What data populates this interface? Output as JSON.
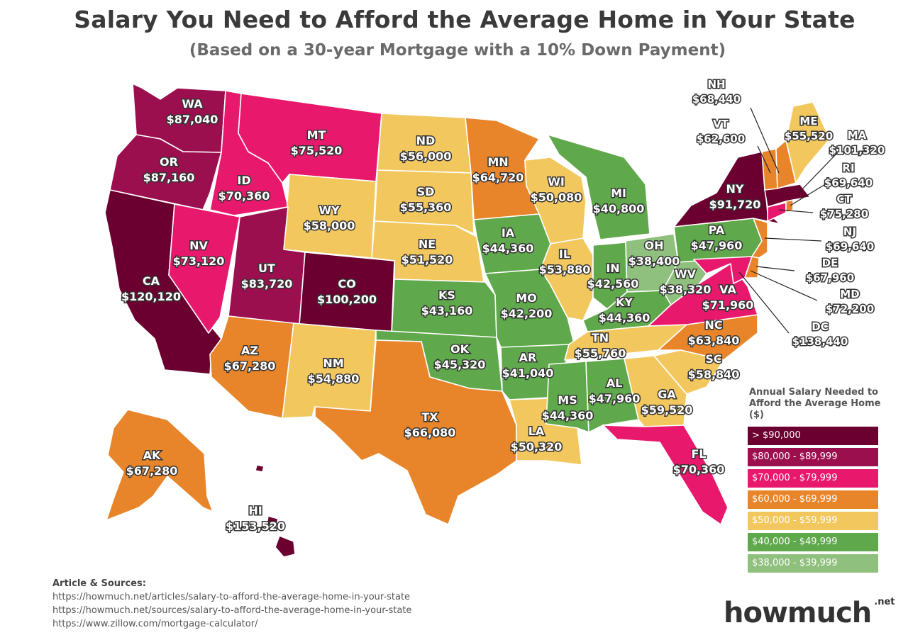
{
  "title": "Salary You Need to Afford the Average Home in Your State",
  "subtitle": "(Based on a 30-year Mortgage with a 10% Down Payment)",
  "colors": {
    "c90": "#6b0030",
    "c80": "#9b0f4f",
    "c70": "#e8186d",
    "c60": "#e8852a",
    "c50": "#f2c85e",
    "c40": "#5fa84b",
    "c38": "#8fc07e"
  },
  "legend": {
    "title": "Annual Salary Needed to Afford the Average Home ($)",
    "items": [
      {
        "label": "> $90,000",
        "color": "#6b0030"
      },
      {
        "label": "$80,000 - $89,999",
        "color": "#9b0f4f"
      },
      {
        "label": "$70,000 - $79,999",
        "color": "#e8186d"
      },
      {
        "label": "$60,000 - $69,999",
        "color": "#e8852a"
      },
      {
        "label": "$50,000 - $59,999",
        "color": "#f2c85e"
      },
      {
        "label": "$40,000 - $49,999",
        "color": "#5fa84b"
      },
      {
        "label": "$38,000 - $39,999",
        "color": "#8fc07e"
      }
    ]
  },
  "states": [
    {
      "abbr": "WA",
      "value": "$87,040"
    },
    {
      "abbr": "OR",
      "value": "$87,160"
    },
    {
      "abbr": "CA",
      "value": "$120,120"
    },
    {
      "abbr": "ID",
      "value": "$70,360"
    },
    {
      "abbr": "NV",
      "value": "$73,120"
    },
    {
      "abbr": "MT",
      "value": "$75,520"
    },
    {
      "abbr": "WY",
      "value": "$58,000"
    },
    {
      "abbr": "UT",
      "value": "$83,720"
    },
    {
      "abbr": "CO",
      "value": "$100,200"
    },
    {
      "abbr": "AZ",
      "value": "$67,280"
    },
    {
      "abbr": "NM",
      "value": "$54,880"
    },
    {
      "abbr": "ND",
      "value": "$56,000"
    },
    {
      "abbr": "SD",
      "value": "$55,360"
    },
    {
      "abbr": "NE",
      "value": "$51,520"
    },
    {
      "abbr": "KS",
      "value": "$43,160"
    },
    {
      "abbr": "OK",
      "value": "$45,320"
    },
    {
      "abbr": "TX",
      "value": "$66,080"
    },
    {
      "abbr": "MN",
      "value": "$64,720"
    },
    {
      "abbr": "IA",
      "value": "$44,360"
    },
    {
      "abbr": "MO",
      "value": "$42,200"
    },
    {
      "abbr": "AR",
      "value": "$41,040"
    },
    {
      "abbr": "LA",
      "value": "$50,320"
    },
    {
      "abbr": "WI",
      "value": "$50,080"
    },
    {
      "abbr": "IL",
      "value": "$53,880"
    },
    {
      "abbr": "MI",
      "value": "$40,800"
    },
    {
      "abbr": "IN",
      "value": "$42,560"
    },
    {
      "abbr": "OH",
      "value": "$38,400"
    },
    {
      "abbr": "KY",
      "value": "$44,360"
    },
    {
      "abbr": "TN",
      "value": "$55,760"
    },
    {
      "abbr": "MS",
      "value": "$44,360"
    },
    {
      "abbr": "AL",
      "value": "$47,960"
    },
    {
      "abbr": "GA",
      "value": "$59,520"
    },
    {
      "abbr": "FL",
      "value": "$70,360"
    },
    {
      "abbr": "SC",
      "value": "$58,840"
    },
    {
      "abbr": "NC",
      "value": "$63,840"
    },
    {
      "abbr": "VA",
      "value": "$71,960"
    },
    {
      "abbr": "WV",
      "value": "$38,320"
    },
    {
      "abbr": "PA",
      "value": "$47,960"
    },
    {
      "abbr": "NY",
      "value": "$91,720"
    },
    {
      "abbr": "AK",
      "value": "$67,280"
    },
    {
      "abbr": "HI",
      "value": "$153,520"
    },
    {
      "abbr": "NH",
      "value": "$68,440"
    },
    {
      "abbr": "VT",
      "value": "$62,600"
    },
    {
      "abbr": "ME",
      "value": "$55,520"
    },
    {
      "abbr": "MA",
      "value": "$101,320"
    },
    {
      "abbr": "RI",
      "value": "$69,640"
    },
    {
      "abbr": "CT",
      "value": "$75,280"
    },
    {
      "abbr": "NJ",
      "value": "$69,640"
    },
    {
      "abbr": "DE",
      "value": "$67,960"
    },
    {
      "abbr": "MD",
      "value": "$72,200"
    },
    {
      "abbr": "DC",
      "value": "$138,440"
    }
  ],
  "sources": {
    "heading": "Article & Sources:",
    "lines": [
      "https://howmuch.net/articles/salary-to-afford-the-average-home-in-your-state",
      "https://howmuch.net/sources/salary-to-afford-the-average-home-in-your-state",
      "https://www.zillow.com/mortgage-calculator/"
    ]
  },
  "logo": {
    "name": "howmuch",
    "tld": ".net"
  }
}
